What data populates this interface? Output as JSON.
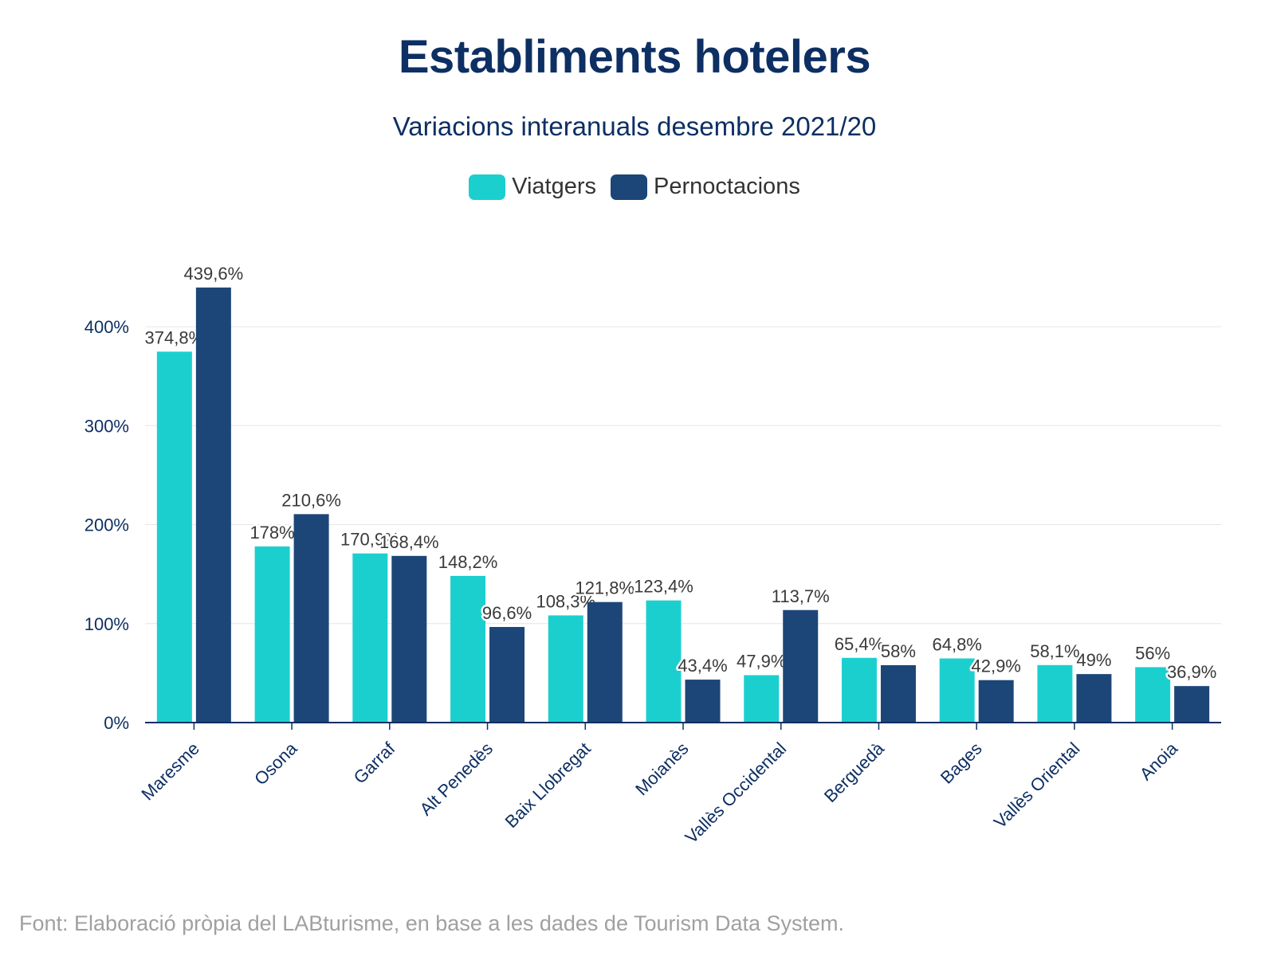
{
  "title": "Establiments hotelers",
  "subtitle": "Variacions interanuals desembre 2021/20",
  "footer": "Font: Elaboració pròpia del LABturisme, en base a les dades de Tourism Data System.",
  "colors": {
    "viatgers": "#1ccfcf",
    "pernoctacions": "#1c4677",
    "title": "#0d2f63",
    "axis": "#0d2f63"
  },
  "chart_data": {
    "type": "bar",
    "categories": [
      "Maresme",
      "Osona",
      "Garraf",
      "Alt Penedès",
      "Baix Llobregat",
      "Moianès",
      "Vallès Occidental",
      "Berguedà",
      "Bages",
      "Vallès Oriental",
      "Anoia"
    ],
    "series": [
      {
        "name": "Viatgers",
        "values": [
          374.8,
          178,
          170.9,
          148.2,
          108.3,
          123.4,
          47.9,
          65.4,
          64.8,
          58.1,
          56
        ],
        "labels": [
          "374,8%",
          "178%",
          "170,9%",
          "148,2%",
          "108,3%",
          "123,4%",
          "47,9%",
          "65,4%",
          "64,8%",
          "58,1%",
          "56%"
        ]
      },
      {
        "name": "Pernoctacions",
        "values": [
          439.6,
          210.6,
          168.4,
          96.6,
          121.8,
          43.4,
          113.7,
          58,
          42.9,
          49,
          36.9
        ],
        "labels": [
          "439,6%",
          "210,6%",
          "168,4%",
          "96,6%",
          "121,8%",
          "43,4%",
          "113,7%",
          "58%",
          "42,9%",
          "49%",
          "36,9%"
        ]
      }
    ],
    "yticks": [
      0,
      100,
      200,
      300,
      400
    ],
    "ytick_labels": [
      "0%",
      "100%",
      "200%",
      "300%",
      "400%"
    ],
    "ylim": [
      0,
      440
    ],
    "grid": true,
    "legend": "top-center"
  }
}
